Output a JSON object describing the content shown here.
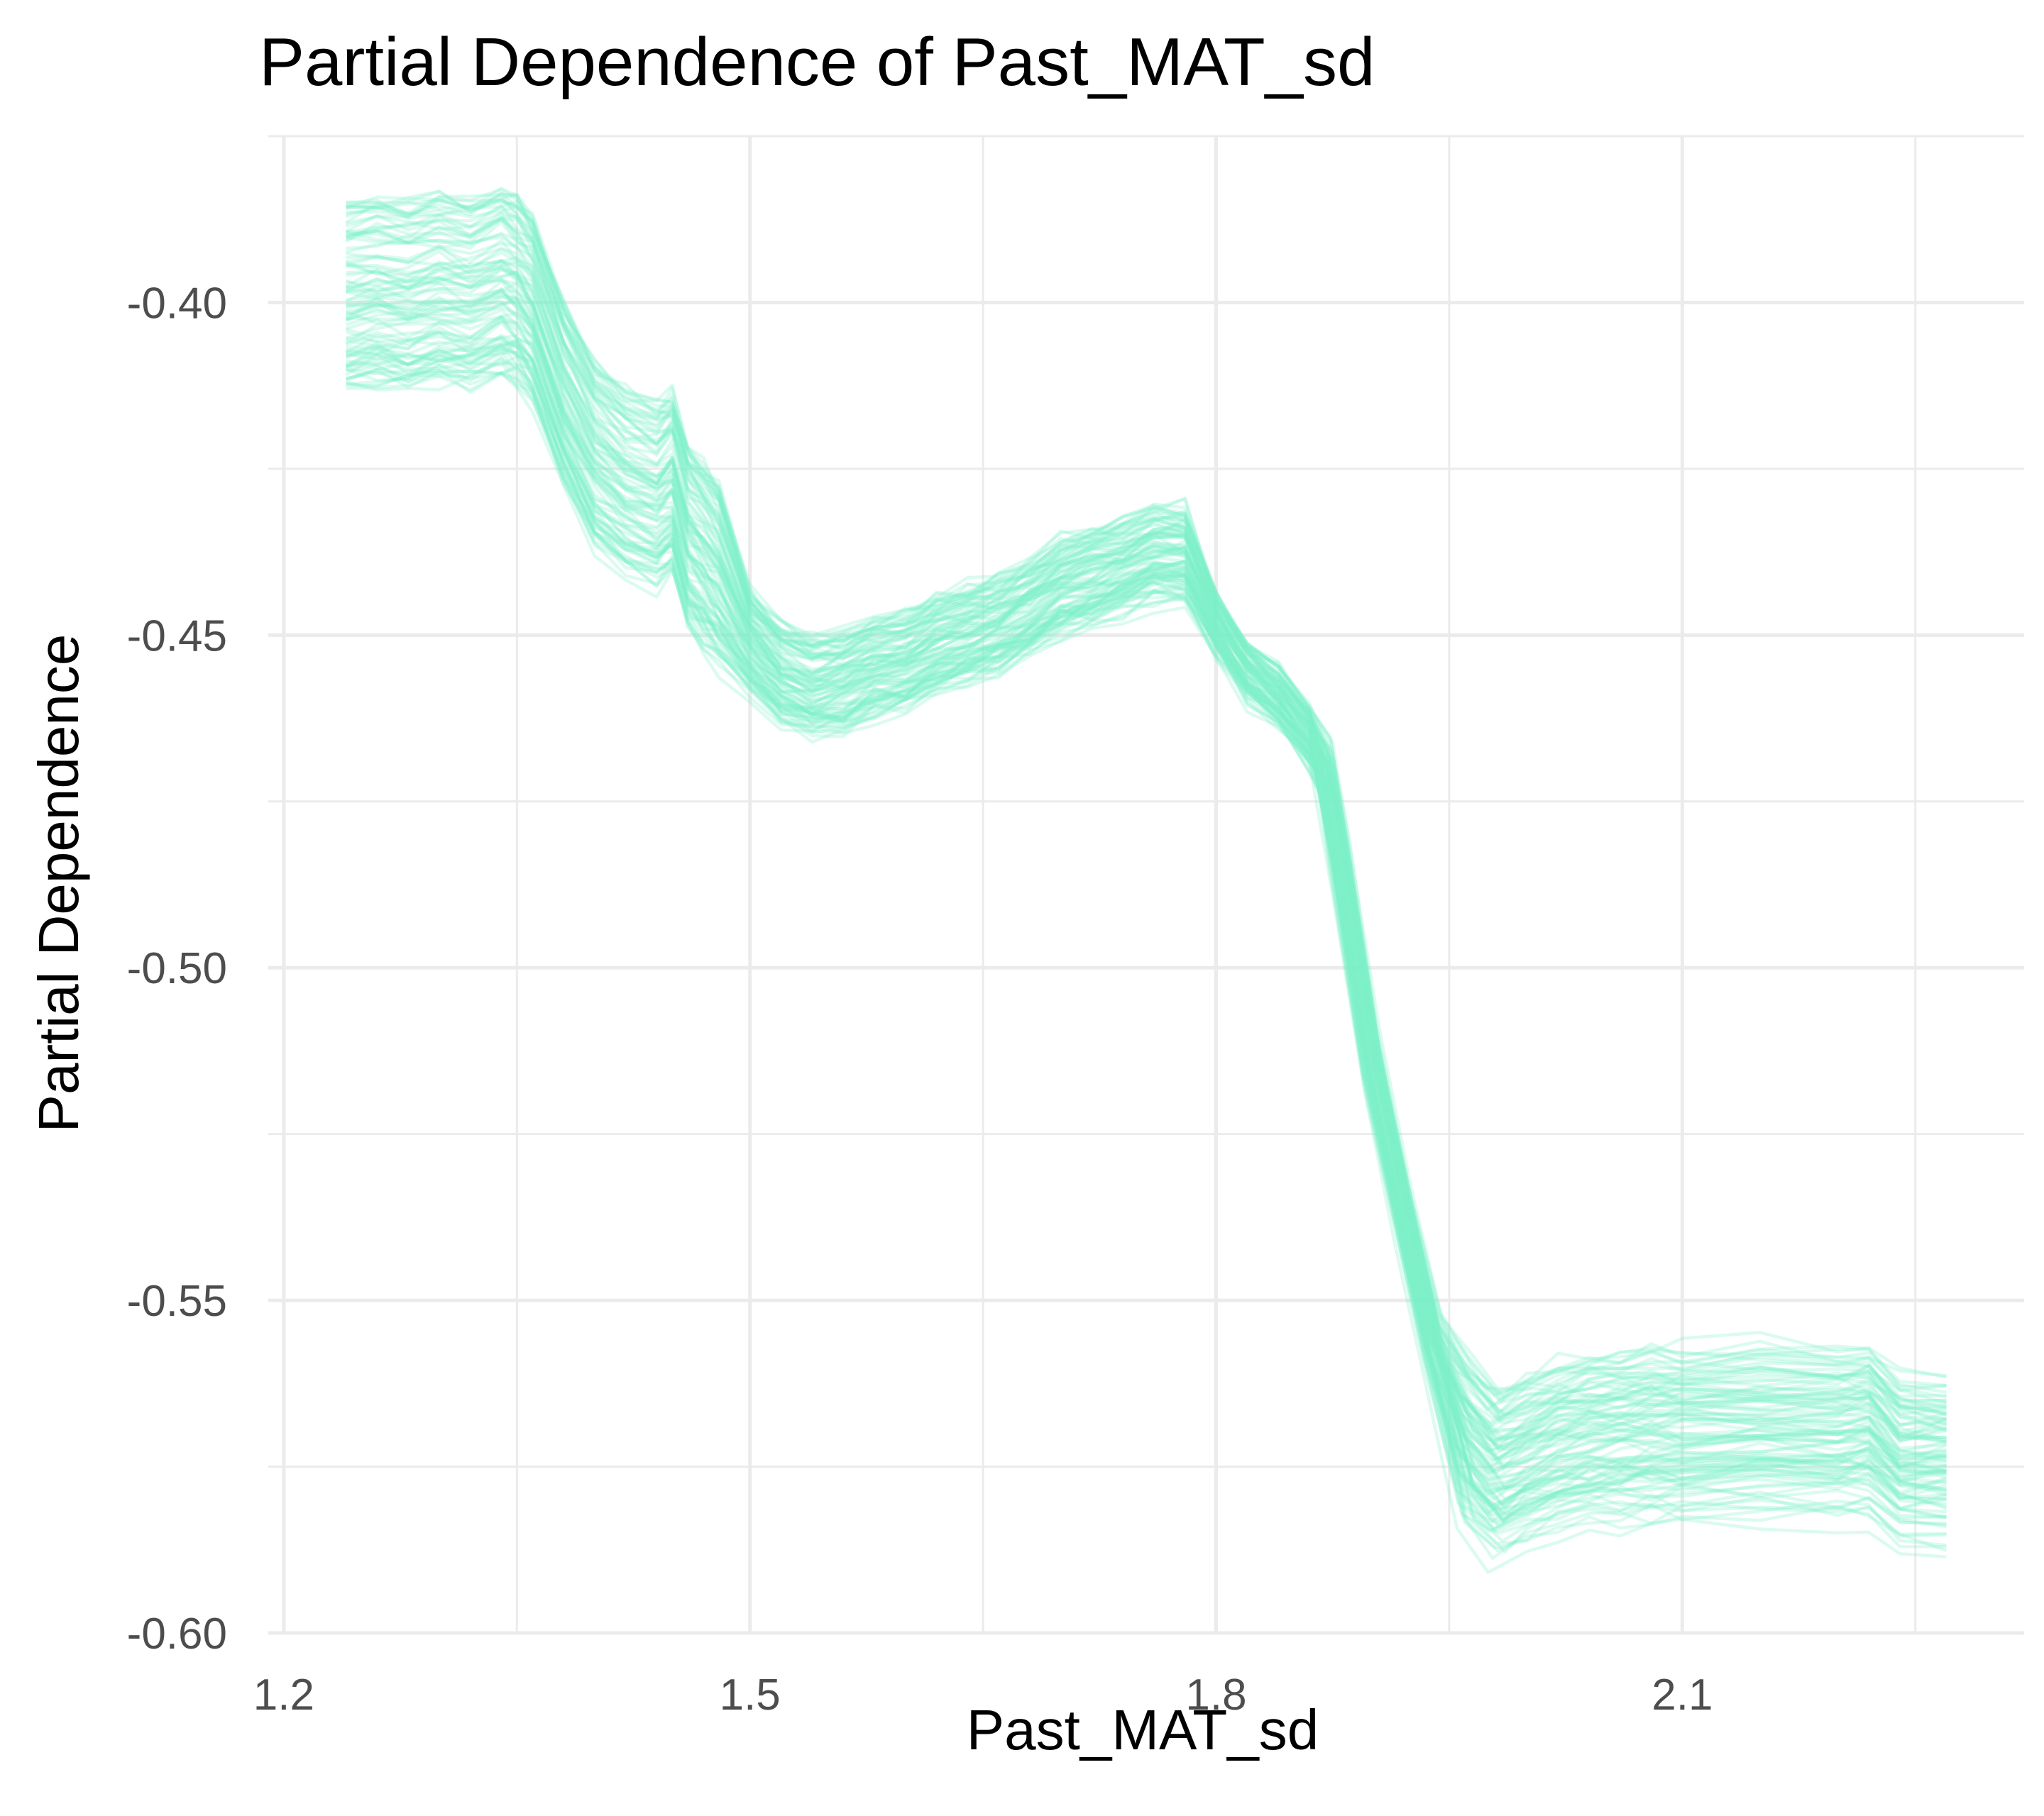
{
  "chart_data": {
    "type": "line",
    "title": "Partial Dependence of Past_MAT_sd",
    "xlabel": "Past_MAT_sd",
    "ylabel": "Partial Dependence",
    "xlim": [
      1.19,
      2.32
    ],
    "ylim": [
      -0.6,
      -0.375
    ],
    "x_ticks": [
      1.2,
      1.5,
      1.8,
      2.1
    ],
    "x_tick_labels": [
      "1.2",
      "1.5",
      "1.8",
      "2.1"
    ],
    "y_ticks": [
      -0.4,
      -0.45,
      -0.5,
      -0.55,
      -0.6
    ],
    "y_tick_labels": [
      "-0.40",
      "-0.45",
      "-0.50",
      "-0.55",
      "-0.60"
    ],
    "grid": true,
    "legend": "none",
    "line_color": "#7ff0c8",
    "series_count": 100,
    "center_curve": {
      "x": [
        1.24,
        1.26,
        1.28,
        1.3,
        1.32,
        1.34,
        1.35,
        1.36,
        1.38,
        1.4,
        1.42,
        1.44,
        1.45,
        1.46,
        1.47,
        1.48,
        1.5,
        1.52,
        1.54,
        1.56,
        1.58,
        1.6,
        1.62,
        1.64,
        1.66,
        1.68,
        1.7,
        1.72,
        1.74,
        1.76,
        1.78,
        1.8,
        1.82,
        1.84,
        1.86,
        1.87,
        1.88,
        1.9,
        1.92,
        1.94,
        1.96,
        1.98,
        2.0,
        2.02,
        2.04,
        2.06,
        2.08,
        2.1,
        2.15,
        2.2,
        2.22,
        2.24,
        2.27
      ],
      "y": [
        -0.401,
        -0.4005,
        -0.401,
        -0.4,
        -0.401,
        -0.399,
        -0.4,
        -0.403,
        -0.416,
        -0.425,
        -0.429,
        -0.431,
        -0.429,
        -0.437,
        -0.44,
        -0.443,
        -0.452,
        -0.457,
        -0.459,
        -0.458,
        -0.456,
        -0.455,
        -0.4525,
        -0.451,
        -0.4495,
        -0.447,
        -0.444,
        -0.4425,
        -0.441,
        -0.439,
        -0.439,
        -0.449,
        -0.456,
        -0.46,
        -0.466,
        -0.471,
        -0.485,
        -0.515,
        -0.537,
        -0.558,
        -0.573,
        -0.578,
        -0.576,
        -0.574,
        -0.573,
        -0.5725,
        -0.572,
        -0.572,
        -0.5715,
        -0.572,
        -0.5715,
        -0.576,
        -0.576
      ],
      "spread_start": [
        -0.0125,
        0.017
      ],
      "spread_end": [
        -0.013,
        0.018
      ]
    }
  }
}
